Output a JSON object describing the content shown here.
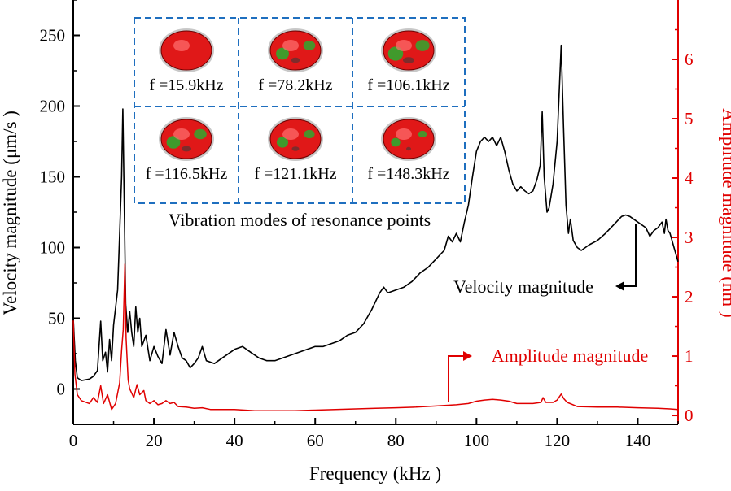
{
  "chart_data": {
    "type": "line",
    "xlabel": "Frequency (kHz )",
    "ylabel_left": "Velocity magnitude (μm/s )",
    "ylabel_right": "Amplitude magnitude (nm )",
    "xlim": [
      0,
      150
    ],
    "ylim_left": [
      -25,
      275
    ],
    "ylim_right": [
      -0.15,
      7.0
    ],
    "x_ticks": [
      "0",
      "20",
      "40",
      "60",
      "80",
      "100",
      "120",
      "140"
    ],
    "y_left_ticks": [
      "0",
      "50",
      "100",
      "150",
      "200",
      "250"
    ],
    "y_right_ticks": [
      "0",
      "1",
      "2",
      "3",
      "4",
      "5",
      "6"
    ],
    "colors": {
      "velocity": "#000000",
      "amplitude": "#e00000",
      "inset_border": "#1f6fbf"
    },
    "series": [
      {
        "name": "Velocity magnitude",
        "axis": "left",
        "color": "#000000",
        "points": [
          [
            0,
            50
          ],
          [
            0.5,
            20
          ],
          [
            1,
            8
          ],
          [
            2,
            6
          ],
          [
            4,
            7
          ],
          [
            5,
            9
          ],
          [
            6,
            13
          ],
          [
            6.8,
            48
          ],
          [
            7.3,
            20
          ],
          [
            8,
            26
          ],
          [
            8.5,
            12
          ],
          [
            9,
            35
          ],
          [
            9.5,
            20
          ],
          [
            10,
            45
          ],
          [
            11,
            70
          ],
          [
            11.5,
            110
          ],
          [
            12,
            150
          ],
          [
            12.3,
            198
          ],
          [
            12.7,
            120
          ],
          [
            13,
            60
          ],
          [
            13.5,
            40
          ],
          [
            14,
            55
          ],
          [
            14.5,
            40
          ],
          [
            15,
            30
          ],
          [
            15.5,
            58
          ],
          [
            16,
            40
          ],
          [
            16.5,
            50
          ],
          [
            17,
            30
          ],
          [
            18,
            38
          ],
          [
            19,
            20
          ],
          [
            20,
            30
          ],
          [
            21,
            23
          ],
          [
            22,
            18
          ],
          [
            23,
            42
          ],
          [
            24,
            24
          ],
          [
            25,
            40
          ],
          [
            26,
            30
          ],
          [
            27,
            22
          ],
          [
            28,
            20
          ],
          [
            29,
            15
          ],
          [
            30,
            18
          ],
          [
            31,
            22
          ],
          [
            32,
            30
          ],
          [
            33,
            20
          ],
          [
            35,
            18
          ],
          [
            37,
            22
          ],
          [
            39,
            26
          ],
          [
            40,
            28
          ],
          [
            42,
            30
          ],
          [
            44,
            26
          ],
          [
            46,
            22
          ],
          [
            48,
            20
          ],
          [
            50,
            20
          ],
          [
            52,
            22
          ],
          [
            54,
            24
          ],
          [
            56,
            26
          ],
          [
            58,
            28
          ],
          [
            60,
            30
          ],
          [
            62,
            30
          ],
          [
            64,
            32
          ],
          [
            66,
            34
          ],
          [
            68,
            38
          ],
          [
            70,
            40
          ],
          [
            72,
            46
          ],
          [
            74,
            56
          ],
          [
            76,
            68
          ],
          [
            77,
            72
          ],
          [
            78,
            68
          ],
          [
            80,
            70
          ],
          [
            82,
            72
          ],
          [
            84,
            76
          ],
          [
            86,
            82
          ],
          [
            88,
            86
          ],
          [
            90,
            92
          ],
          [
            92,
            98
          ],
          [
            93,
            108
          ],
          [
            94,
            104
          ],
          [
            95,
            110
          ],
          [
            96,
            104
          ],
          [
            97,
            118
          ],
          [
            98,
            130
          ],
          [
            99,
            150
          ],
          [
            100,
            168
          ],
          [
            101,
            175
          ],
          [
            102,
            178
          ],
          [
            103,
            175
          ],
          [
            104,
            178
          ],
          [
            105,
            172
          ],
          [
            106,
            178
          ],
          [
            107,
            168
          ],
          [
            108,
            155
          ],
          [
            109,
            145
          ],
          [
            110,
            140
          ],
          [
            111,
            143
          ],
          [
            112,
            140
          ],
          [
            113,
            138
          ],
          [
            114,
            140
          ],
          [
            115,
            148
          ],
          [
            115.8,
            158
          ],
          [
            116.3,
            196
          ],
          [
            116.8,
            150
          ],
          [
            117.5,
            125
          ],
          [
            118,
            128
          ],
          [
            119,
            145
          ],
          [
            120,
            175
          ],
          [
            121,
            243
          ],
          [
            121.6,
            185
          ],
          [
            122.2,
            130
          ],
          [
            122.8,
            110
          ],
          [
            123.3,
            120
          ],
          [
            124,
            105
          ],
          [
            125,
            100
          ],
          [
            126,
            98
          ],
          [
            127,
            100
          ],
          [
            128,
            102
          ],
          [
            130,
            105
          ],
          [
            132,
            110
          ],
          [
            134,
            116
          ],
          [
            136,
            122
          ],
          [
            137,
            123
          ],
          [
            138,
            122
          ],
          [
            139,
            120
          ],
          [
            140,
            118
          ],
          [
            142,
            114
          ],
          [
            143,
            108
          ],
          [
            144,
            112
          ],
          [
            145,
            114
          ],
          [
            146,
            118
          ],
          [
            146.6,
            110
          ],
          [
            147,
            120
          ],
          [
            147.5,
            112
          ],
          [
            148,
            110
          ],
          [
            149,
            100
          ],
          [
            150,
            90
          ]
        ]
      },
      {
        "name": "Amplitude magnitude",
        "axis": "right",
        "color": "#e00000",
        "points": [
          [
            0,
            1.6
          ],
          [
            0.4,
            0.7
          ],
          [
            1,
            0.35
          ],
          [
            2,
            0.25
          ],
          [
            4,
            0.2
          ],
          [
            5,
            0.3
          ],
          [
            6,
            0.22
          ],
          [
            6.8,
            0.5
          ],
          [
            7.5,
            0.2
          ],
          [
            8.5,
            0.35
          ],
          [
            9.5,
            0.1
          ],
          [
            10.5,
            0.2
          ],
          [
            11.5,
            0.55
          ],
          [
            12,
            1.1
          ],
          [
            12.4,
            1.45
          ],
          [
            12.8,
            2.55
          ],
          [
            13.1,
            1.3
          ],
          [
            13.6,
            0.6
          ],
          [
            14,
            0.45
          ],
          [
            15,
            0.3
          ],
          [
            15.8,
            0.52
          ],
          [
            16.5,
            0.35
          ],
          [
            17.5,
            0.42
          ],
          [
            18,
            0.25
          ],
          [
            19,
            0.2
          ],
          [
            20,
            0.25
          ],
          [
            21,
            0.18
          ],
          [
            22,
            0.2
          ],
          [
            23,
            0.25
          ],
          [
            24,
            0.2
          ],
          [
            25,
            0.22
          ],
          [
            26,
            0.15
          ],
          [
            28,
            0.14
          ],
          [
            30,
            0.12
          ],
          [
            32,
            0.13
          ],
          [
            34,
            0.1
          ],
          [
            36,
            0.1
          ],
          [
            38,
            0.1
          ],
          [
            40,
            0.1
          ],
          [
            45,
            0.08
          ],
          [
            50,
            0.08
          ],
          [
            55,
            0.08
          ],
          [
            60,
            0.09
          ],
          [
            65,
            0.1
          ],
          [
            70,
            0.11
          ],
          [
            75,
            0.12
          ],
          [
            80,
            0.13
          ],
          [
            85,
            0.14
          ],
          [
            90,
            0.16
          ],
          [
            95,
            0.18
          ],
          [
            98,
            0.2
          ],
          [
            100,
            0.24
          ],
          [
            102,
            0.26
          ],
          [
            104,
            0.27
          ],
          [
            106,
            0.26
          ],
          [
            108,
            0.24
          ],
          [
            110,
            0.2
          ],
          [
            112,
            0.2
          ],
          [
            114,
            0.2
          ],
          [
            116,
            0.22
          ],
          [
            116.5,
            0.3
          ],
          [
            117.2,
            0.22
          ],
          [
            119,
            0.22
          ],
          [
            120,
            0.26
          ],
          [
            121,
            0.36
          ],
          [
            121.7,
            0.28
          ],
          [
            122.5,
            0.22
          ],
          [
            125,
            0.15
          ],
          [
            130,
            0.14
          ],
          [
            135,
            0.14
          ],
          [
            140,
            0.13
          ],
          [
            145,
            0.12
          ],
          [
            148,
            0.11
          ],
          [
            150,
            0.1
          ]
        ]
      }
    ],
    "inset": {
      "title": "Vibration modes of resonance points",
      "modes": [
        {
          "label": "f =15.9kHz",
          "green_amount": 0.0
        },
        {
          "label": "f =78.2kHz",
          "green_amount": 0.55
        },
        {
          "label": "f =106.1kHz",
          "green_amount": 0.7
        },
        {
          "label": "f =116.5kHz",
          "green_amount": 0.6
        },
        {
          "label": "f =121.1kHz",
          "green_amount": 0.45
        },
        {
          "label": "f =148.3kHz",
          "green_amount": 0.3
        }
      ]
    },
    "annotations": {
      "velocity_label": "Velocity magnitude",
      "amplitude_label": "Amplitude magnitude"
    }
  }
}
